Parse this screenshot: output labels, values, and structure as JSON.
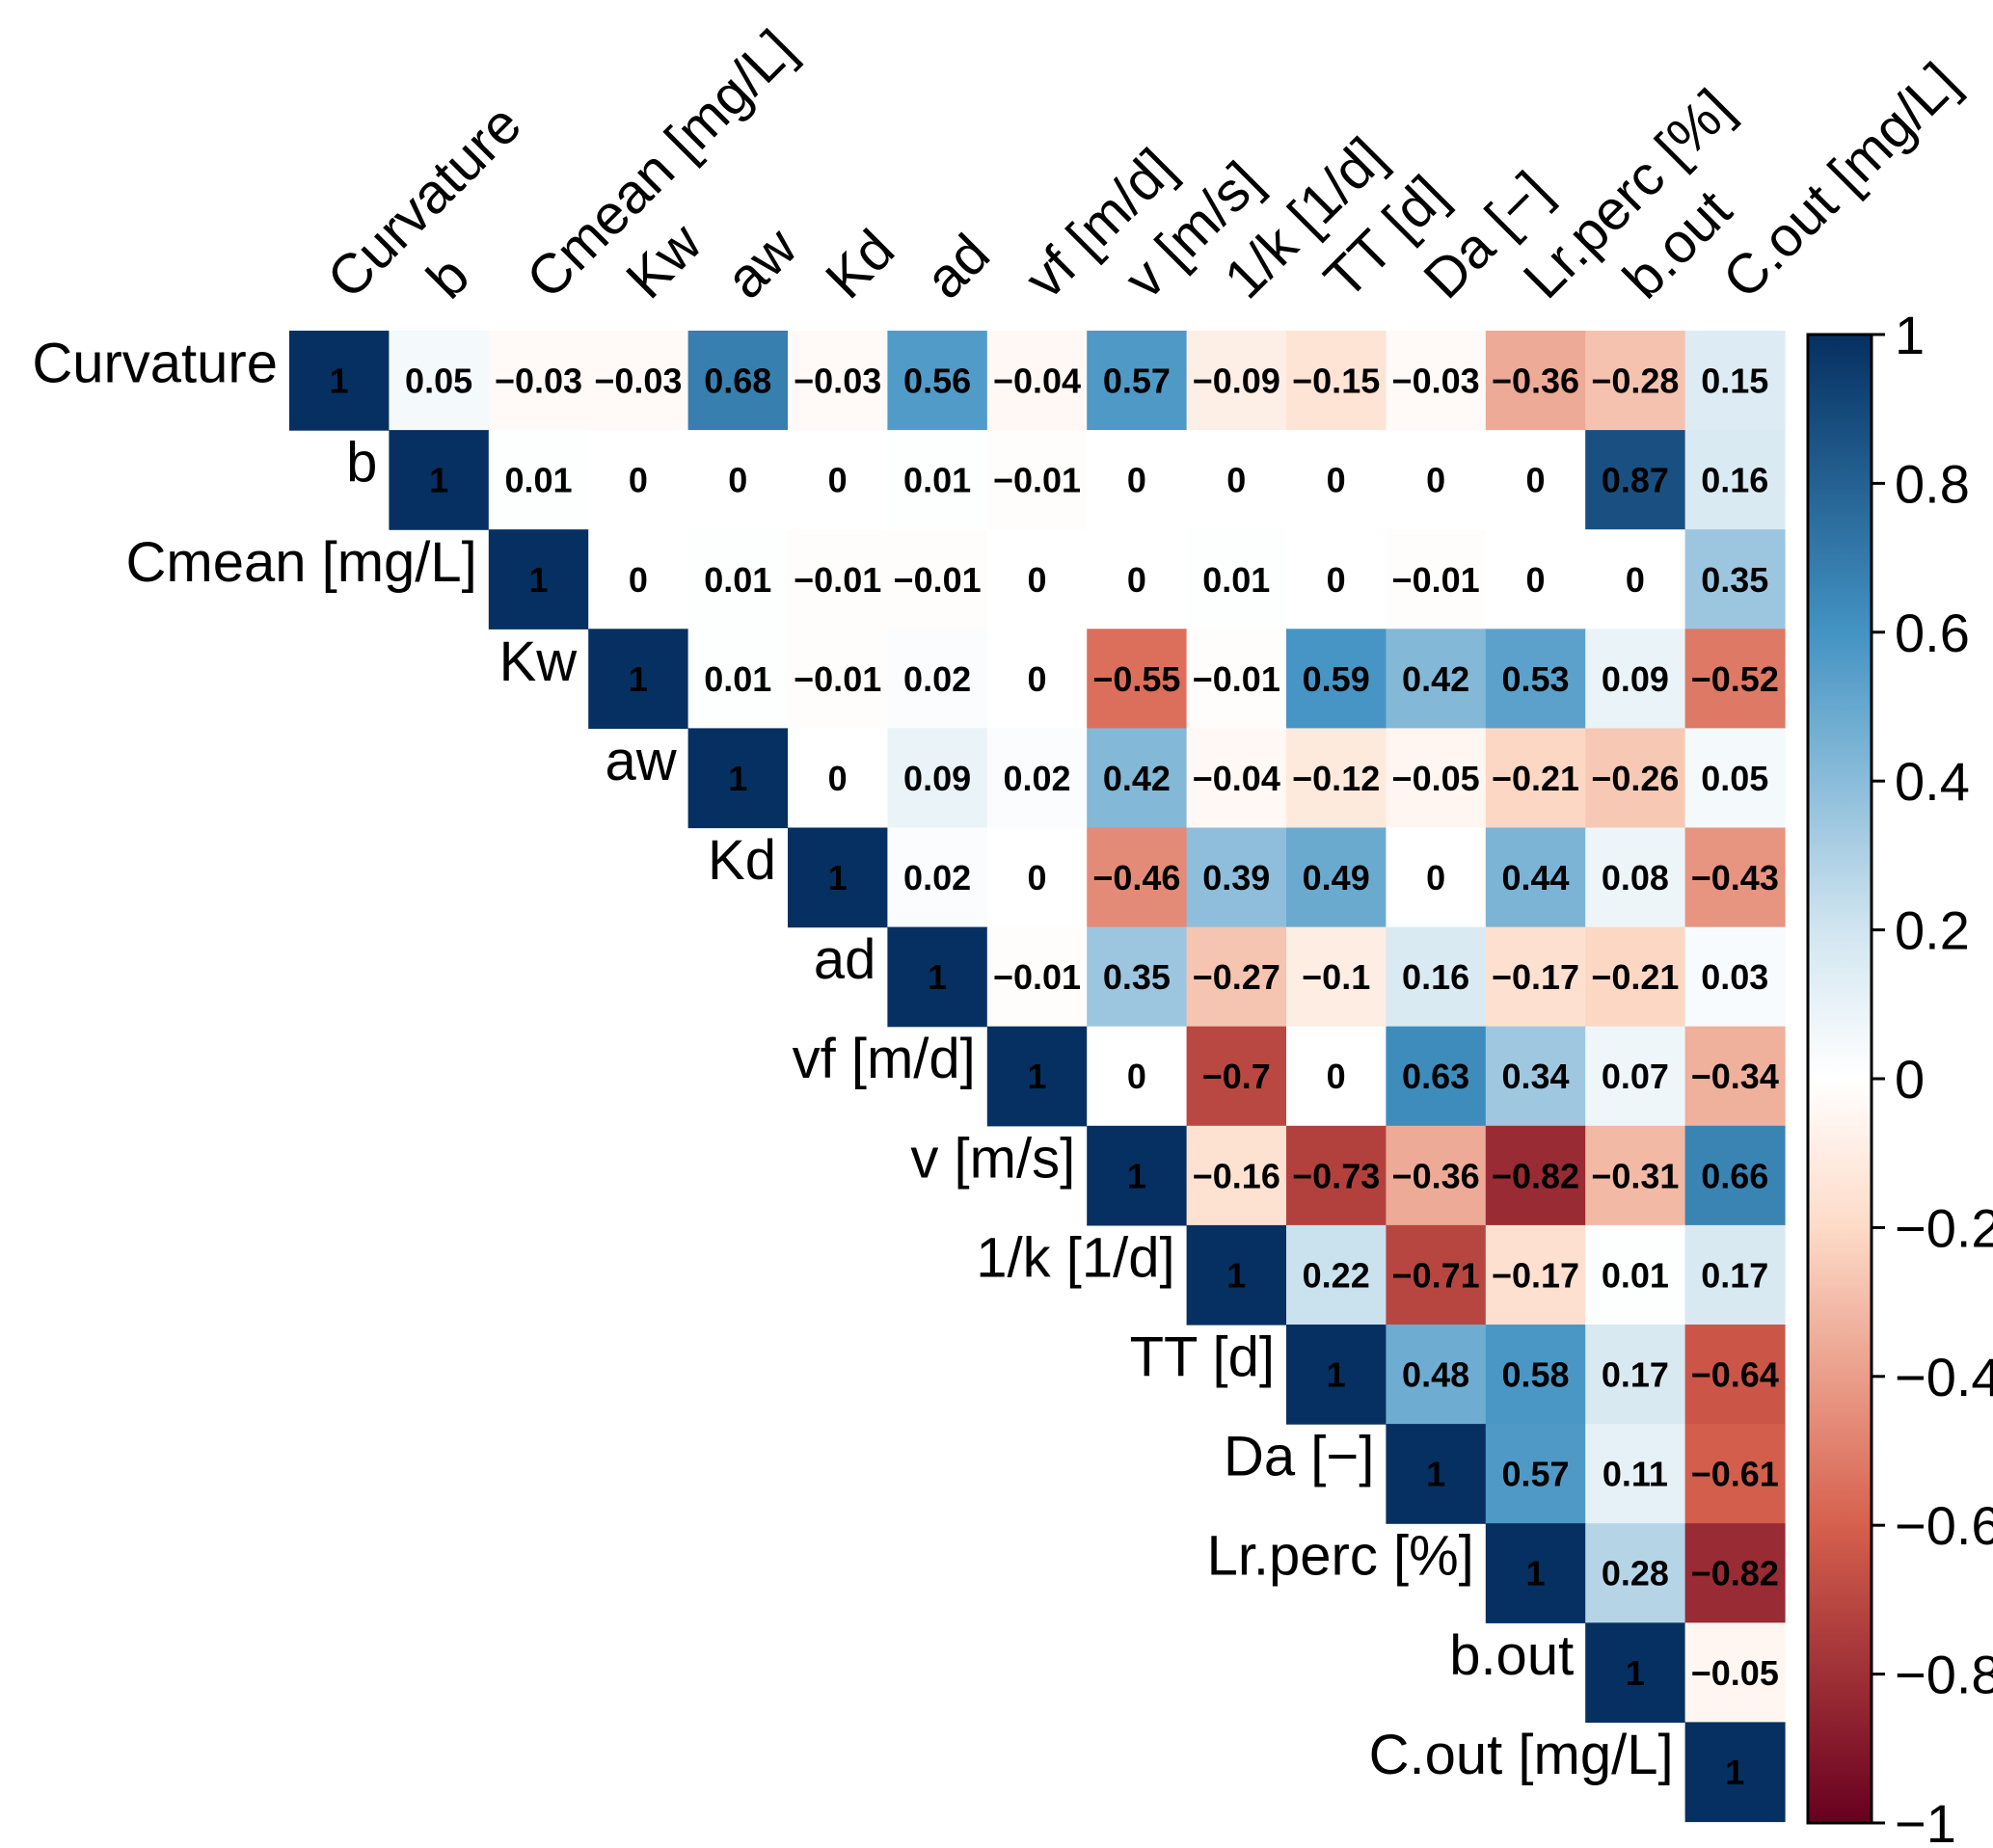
{
  "chart_data": {
    "type": "heatmap",
    "variables": [
      "Curvature",
      "b",
      "Cmean [mg/L]",
      "Kw",
      "aw",
      "Kd",
      "ad",
      "vf [m/d]",
      "v [m/s]",
      "1/k [1/d]",
      "TT [d]",
      "Da [−]",
      "Lr.perc [%]",
      "b.out",
      "C.out [mg/L]"
    ],
    "matrix": [
      [
        1,
        0.05,
        -0.03,
        -0.03,
        0.68,
        -0.03,
        0.56,
        -0.04,
        0.57,
        -0.09,
        -0.15,
        -0.03,
        -0.36,
        -0.28,
        0.15
      ],
      [
        null,
        1,
        0.01,
        0,
        0,
        0,
        0.01,
        -0.01,
        0,
        0,
        0,
        0,
        0,
        0.87,
        0.16
      ],
      [
        null,
        null,
        1,
        0,
        0.01,
        -0.01,
        -0.01,
        0,
        0,
        0.01,
        0,
        -0.01,
        0,
        0,
        0.35
      ],
      [
        null,
        null,
        null,
        1,
        0.01,
        -0.01,
        0.02,
        0,
        -0.55,
        -0.01,
        0.59,
        0.42,
        0.53,
        0.09,
        -0.52
      ],
      [
        null,
        null,
        null,
        null,
        1,
        0,
        0.09,
        0.02,
        0.42,
        -0.04,
        -0.12,
        -0.05,
        -0.21,
        -0.26,
        0.05
      ],
      [
        null,
        null,
        null,
        null,
        null,
        1,
        0.02,
        0,
        -0.46,
        0.39,
        0.49,
        0,
        0.44,
        0.08,
        -0.43
      ],
      [
        null,
        null,
        null,
        null,
        null,
        null,
        1,
        -0.01,
        0.35,
        -0.27,
        -0.1,
        0.16,
        -0.17,
        -0.21,
        0.03
      ],
      [
        null,
        null,
        null,
        null,
        null,
        null,
        null,
        1,
        0,
        -0.7,
        0,
        0.63,
        0.34,
        0.07,
        -0.34
      ],
      [
        null,
        null,
        null,
        null,
        null,
        null,
        null,
        null,
        1,
        -0.16,
        -0.73,
        -0.36,
        -0.82,
        -0.31,
        0.66
      ],
      [
        null,
        null,
        null,
        null,
        null,
        null,
        null,
        null,
        null,
        1,
        0.22,
        -0.71,
        -0.17,
        0.01,
        0.17
      ],
      [
        null,
        null,
        null,
        null,
        null,
        null,
        null,
        null,
        null,
        null,
        1,
        0.48,
        0.58,
        0.17,
        -0.64
      ],
      [
        null,
        null,
        null,
        null,
        null,
        null,
        null,
        null,
        null,
        null,
        null,
        1,
        0.57,
        0.11,
        -0.61
      ],
      [
        null,
        null,
        null,
        null,
        null,
        null,
        null,
        null,
        null,
        null,
        null,
        null,
        1,
        0.28,
        -0.82
      ],
      [
        null,
        null,
        null,
        null,
        null,
        null,
        null,
        null,
        null,
        null,
        null,
        null,
        null,
        1,
        -0.05
      ],
      [
        null,
        null,
        null,
        null,
        null,
        null,
        null,
        null,
        null,
        null,
        null,
        null,
        null,
        null,
        1
      ]
    ],
    "colorbar": {
      "min": -1,
      "max": 1,
      "ticks": [
        1,
        0.8,
        0.6,
        0.4,
        0.2,
        0,
        -0.2,
        -0.4,
        -0.6,
        -0.8,
        -1
      ],
      "tick_labels": [
        "1",
        "0.8",
        "0.6",
        "0.4",
        "0.2",
        "0",
        "−0.2",
        "−0.4",
        "−0.6",
        "−0.8",
        "−1"
      ],
      "colormap": "RdBu",
      "colors": {
        "neg_end": "#67001f",
        "neg_mid": "#d6604d",
        "neg_light": "#fddbc7",
        "zero": "#ffffff",
        "pos_light": "#d1e5f0",
        "pos_mid": "#4393c3",
        "pos_end": "#053061"
      }
    },
    "upper_triangle_only": true,
    "show_values": true,
    "grid": false
  }
}
